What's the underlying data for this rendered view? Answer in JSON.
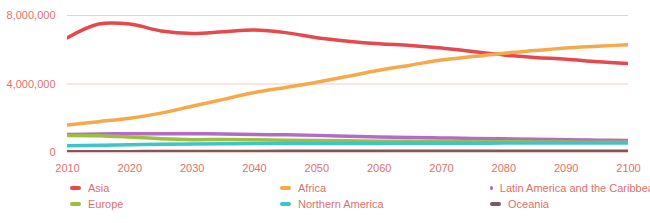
{
  "chart_data": {
    "type": "line",
    "x": [
      2010,
      2015,
      2020,
      2025,
      2030,
      2035,
      2040,
      2045,
      2050,
      2055,
      2060,
      2065,
      2070,
      2075,
      2080,
      2085,
      2090,
      2095,
      2100
    ],
    "series": [
      {
        "name": "Asia",
        "color": "#e5484d",
        "values": [
          6700000,
          7500000,
          7500000,
          7100000,
          6950000,
          7050000,
          7150000,
          7000000,
          6700000,
          6500000,
          6350000,
          6250000,
          6100000,
          5900000,
          5700000,
          5550000,
          5450000,
          5300000,
          5200000
        ]
      },
      {
        "name": "Africa",
        "color": "#f5a94a",
        "values": [
          1600000,
          1800000,
          2000000,
          2300000,
          2700000,
          3100000,
          3500000,
          3800000,
          4100000,
          4450000,
          4800000,
          5100000,
          5400000,
          5600000,
          5800000,
          5950000,
          6100000,
          6200000,
          6300000
        ]
      },
      {
        "name": "Latin America and the Caribbean",
        "color": "#b46bc8",
        "values": [
          1050000,
          1080000,
          1100000,
          1100000,
          1100000,
          1080000,
          1050000,
          1030000,
          1000000,
          950000,
          900000,
          880000,
          850000,
          820000,
          800000,
          780000,
          750000,
          720000,
          700000
        ]
      },
      {
        "name": "Europe",
        "color": "#9cbf3f",
        "values": [
          1000000,
          980000,
          900000,
          800000,
          750000,
          760000,
          750000,
          720000,
          700000,
          680000,
          660000,
          650000,
          650000,
          640000,
          630000,
          620000,
          610000,
          600000,
          600000
        ]
      },
      {
        "name": "Northern America",
        "color": "#3fc4c8",
        "values": [
          400000,
          420000,
          450000,
          480000,
          500000,
          510000,
          520000,
          520000,
          530000,
          530000,
          530000,
          540000,
          540000,
          540000,
          550000,
          550000,
          550000,
          550000,
          550000
        ]
      },
      {
        "name": "Oceania",
        "color": "#7d5762",
        "values": [
          40000,
          45000,
          50000,
          55000,
          60000,
          62000,
          65000,
          67000,
          70000,
          72000,
          74000,
          75000,
          76000,
          77000,
          78000,
          79000,
          80000,
          80000,
          80000
        ]
      }
    ],
    "xlim": [
      2010,
      2100
    ],
    "xticks": [
      2010,
      2020,
      2030,
      2040,
      2050,
      2060,
      2070,
      2080,
      2090,
      2100
    ],
    "ylim": [
      0,
      8000000
    ],
    "yticks": [
      0,
      {
        "value": 4000000,
        "label": "4,000,000"
      },
      {
        "value": 8000000,
        "label": "8,000,000"
      }
    ],
    "grid": true,
    "legend": "bottom"
  }
}
